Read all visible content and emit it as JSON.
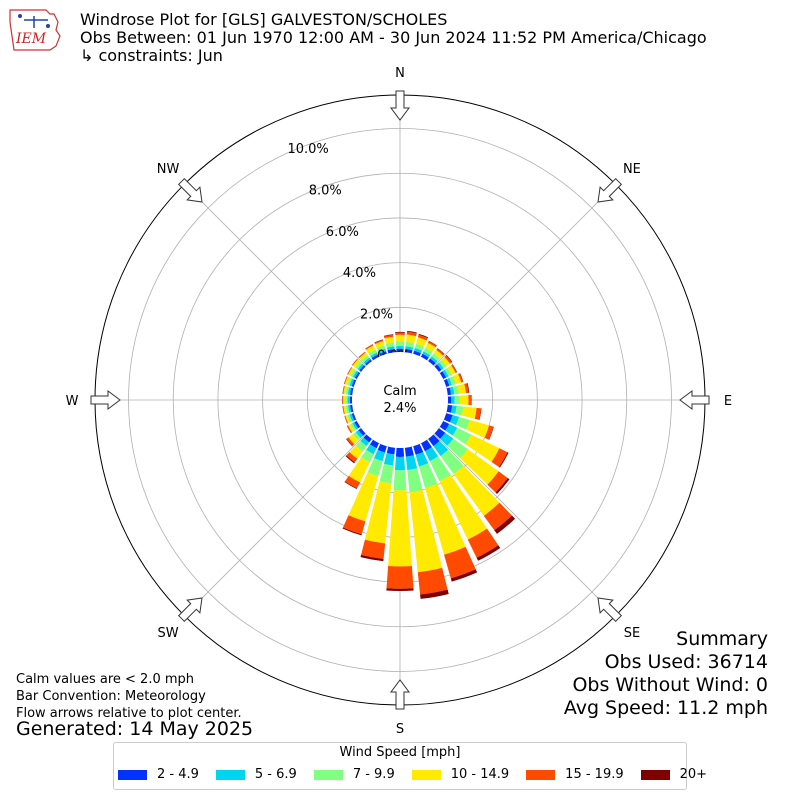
{
  "header": {
    "logo_text": "IEM",
    "title": "Windrose Plot for [GLS] GALVESTON/SCHOLES",
    "obs_between": "Obs Between: 01 Jun 1970 12:00 AM - 30 Jun 2024 11:52 PM America/Chicago",
    "constraints": "↳ constraints: Jun"
  },
  "summary": {
    "heading": "Summary",
    "obs_used": "Obs Used: 36714",
    "obs_without_wind": "Obs Without Wind: 0",
    "avg_speed": "Avg Speed: 11.2 mph"
  },
  "notes": {
    "calm_note": "Calm values are < 2.0 mph",
    "bar_convention": "Bar Convention: Meteorology",
    "flow_arrows": "Flow arrows relative to plot center.",
    "generated": "Generated: 14 May 2025"
  },
  "chart_data": {
    "type": "windrose",
    "calm_label": "Calm",
    "calm_value": "2.4%",
    "radial_ticks": [
      "0.0%",
      "2.0%",
      "4.0%",
      "6.0%",
      "8.0%",
      "10.0%"
    ],
    "radial_max": 11.5,
    "compass_labels": [
      "N",
      "NE",
      "E",
      "SE",
      "S",
      "SW",
      "W",
      "NW"
    ],
    "legend_title": "Wind Speed [mph]",
    "bins": [
      {
        "label": "2 - 4.9",
        "color": "#0033ff"
      },
      {
        "label": "5 - 6.9",
        "color": "#00d5f0"
      },
      {
        "label": "7 - 9.9",
        "color": "#80ff80"
      },
      {
        "label": "10 - 14.9",
        "color": "#ffea00"
      },
      {
        "label": "15 - 19.9",
        "color": "#ff4a00"
      },
      {
        "label": "20+",
        "color": "#800000"
      }
    ],
    "directions": [
      {
        "dir": 0,
        "values": [
          0.15,
          0.12,
          0.2,
          0.3,
          0.1,
          0.03
        ]
      },
      {
        "dir": 10,
        "values": [
          0.15,
          0.12,
          0.2,
          0.33,
          0.12,
          0.04
        ]
      },
      {
        "dir": 20,
        "values": [
          0.15,
          0.12,
          0.2,
          0.3,
          0.12,
          0.04
        ]
      },
      {
        "dir": 30,
        "values": [
          0.15,
          0.12,
          0.18,
          0.25,
          0.08,
          0.02
        ]
      },
      {
        "dir": 40,
        "values": [
          0.15,
          0.12,
          0.15,
          0.2,
          0.08,
          0.02
        ]
      },
      {
        "dir": 50,
        "values": [
          0.15,
          0.12,
          0.15,
          0.2,
          0.1,
          0.03
        ]
      },
      {
        "dir": 60,
        "values": [
          0.15,
          0.12,
          0.15,
          0.2,
          0.06,
          0.02
        ]
      },
      {
        "dir": 70,
        "values": [
          0.15,
          0.12,
          0.18,
          0.25,
          0.08,
          0.02
        ]
      },
      {
        "dir": 80,
        "values": [
          0.15,
          0.15,
          0.2,
          0.32,
          0.12,
          0.03
        ]
      },
      {
        "dir": 90,
        "values": [
          0.15,
          0.15,
          0.22,
          0.4,
          0.12,
          0.02
        ]
      },
      {
        "dir": 100,
        "values": [
          0.2,
          0.2,
          0.3,
          0.6,
          0.2,
          0.02
        ]
      },
      {
        "dir": 110,
        "values": [
          0.3,
          0.3,
          0.5,
          0.9,
          0.2,
          0.02
        ]
      },
      {
        "dir": 120,
        "values": [
          0.3,
          0.4,
          0.7,
          1.4,
          0.4,
          0.05
        ]
      },
      {
        "dir": 130,
        "values": [
          0.35,
          0.45,
          0.8,
          1.7,
          0.5,
          0.1
        ]
      },
      {
        "dir": 140,
        "values": [
          0.4,
          0.55,
          1.0,
          2.3,
          0.8,
          0.2
        ]
      },
      {
        "dir": 150,
        "values": [
          0.4,
          0.5,
          1.0,
          2.9,
          0.9,
          0.15
        ]
      },
      {
        "dir": 160,
        "values": [
          0.4,
          0.55,
          1.0,
          3.1,
          1.1,
          0.15
        ]
      },
      {
        "dir": 170,
        "values": [
          0.4,
          0.6,
          1.0,
          3.6,
          1.0,
          0.2
        ]
      },
      {
        "dir": 180,
        "values": [
          0.4,
          0.6,
          0.9,
          3.4,
          1.0,
          0.1
        ]
      },
      {
        "dir": 190,
        "values": [
          0.3,
          0.5,
          0.8,
          2.7,
          0.7,
          0.1
        ]
      },
      {
        "dir": 200,
        "values": [
          0.3,
          0.4,
          0.7,
          2.1,
          0.6,
          0.05
        ]
      },
      {
        "dir": 210,
        "values": [
          0.25,
          0.3,
          0.4,
          1.0,
          0.3,
          0.03
        ]
      },
      {
        "dir": 220,
        "values": [
          0.2,
          0.2,
          0.3,
          0.4,
          0.2,
          0.05
        ]
      },
      {
        "dir": 230,
        "values": [
          0.15,
          0.15,
          0.15,
          0.25,
          0.1,
          0.03
        ]
      },
      {
        "dir": 240,
        "values": [
          0.12,
          0.1,
          0.1,
          0.12,
          0.05,
          0.01
        ]
      },
      {
        "dir": 250,
        "values": [
          0.1,
          0.1,
          0.1,
          0.1,
          0.03,
          0.01
        ]
      },
      {
        "dir": 260,
        "values": [
          0.1,
          0.1,
          0.1,
          0.1,
          0.03,
          0.01
        ]
      },
      {
        "dir": 270,
        "values": [
          0.1,
          0.1,
          0.1,
          0.1,
          0.03,
          0.01
        ]
      },
      {
        "dir": 280,
        "values": [
          0.1,
          0.1,
          0.1,
          0.1,
          0.03,
          0.01
        ]
      },
      {
        "dir": 290,
        "values": [
          0.1,
          0.1,
          0.1,
          0.12,
          0.03,
          0.01
        ]
      },
      {
        "dir": 300,
        "values": [
          0.1,
          0.1,
          0.12,
          0.12,
          0.03,
          0.01
        ]
      },
      {
        "dir": 310,
        "values": [
          0.1,
          0.1,
          0.12,
          0.15,
          0.03,
          0.01
        ]
      },
      {
        "dir": 320,
        "values": [
          0.1,
          0.1,
          0.12,
          0.15,
          0.04,
          0.01
        ]
      },
      {
        "dir": 330,
        "values": [
          0.12,
          0.1,
          0.15,
          0.2,
          0.05,
          0.01
        ]
      },
      {
        "dir": 340,
        "values": [
          0.12,
          0.12,
          0.15,
          0.2,
          0.06,
          0.02
        ]
      },
      {
        "dir": 350,
        "values": [
          0.15,
          0.12,
          0.18,
          0.25,
          0.08,
          0.03
        ]
      }
    ]
  }
}
